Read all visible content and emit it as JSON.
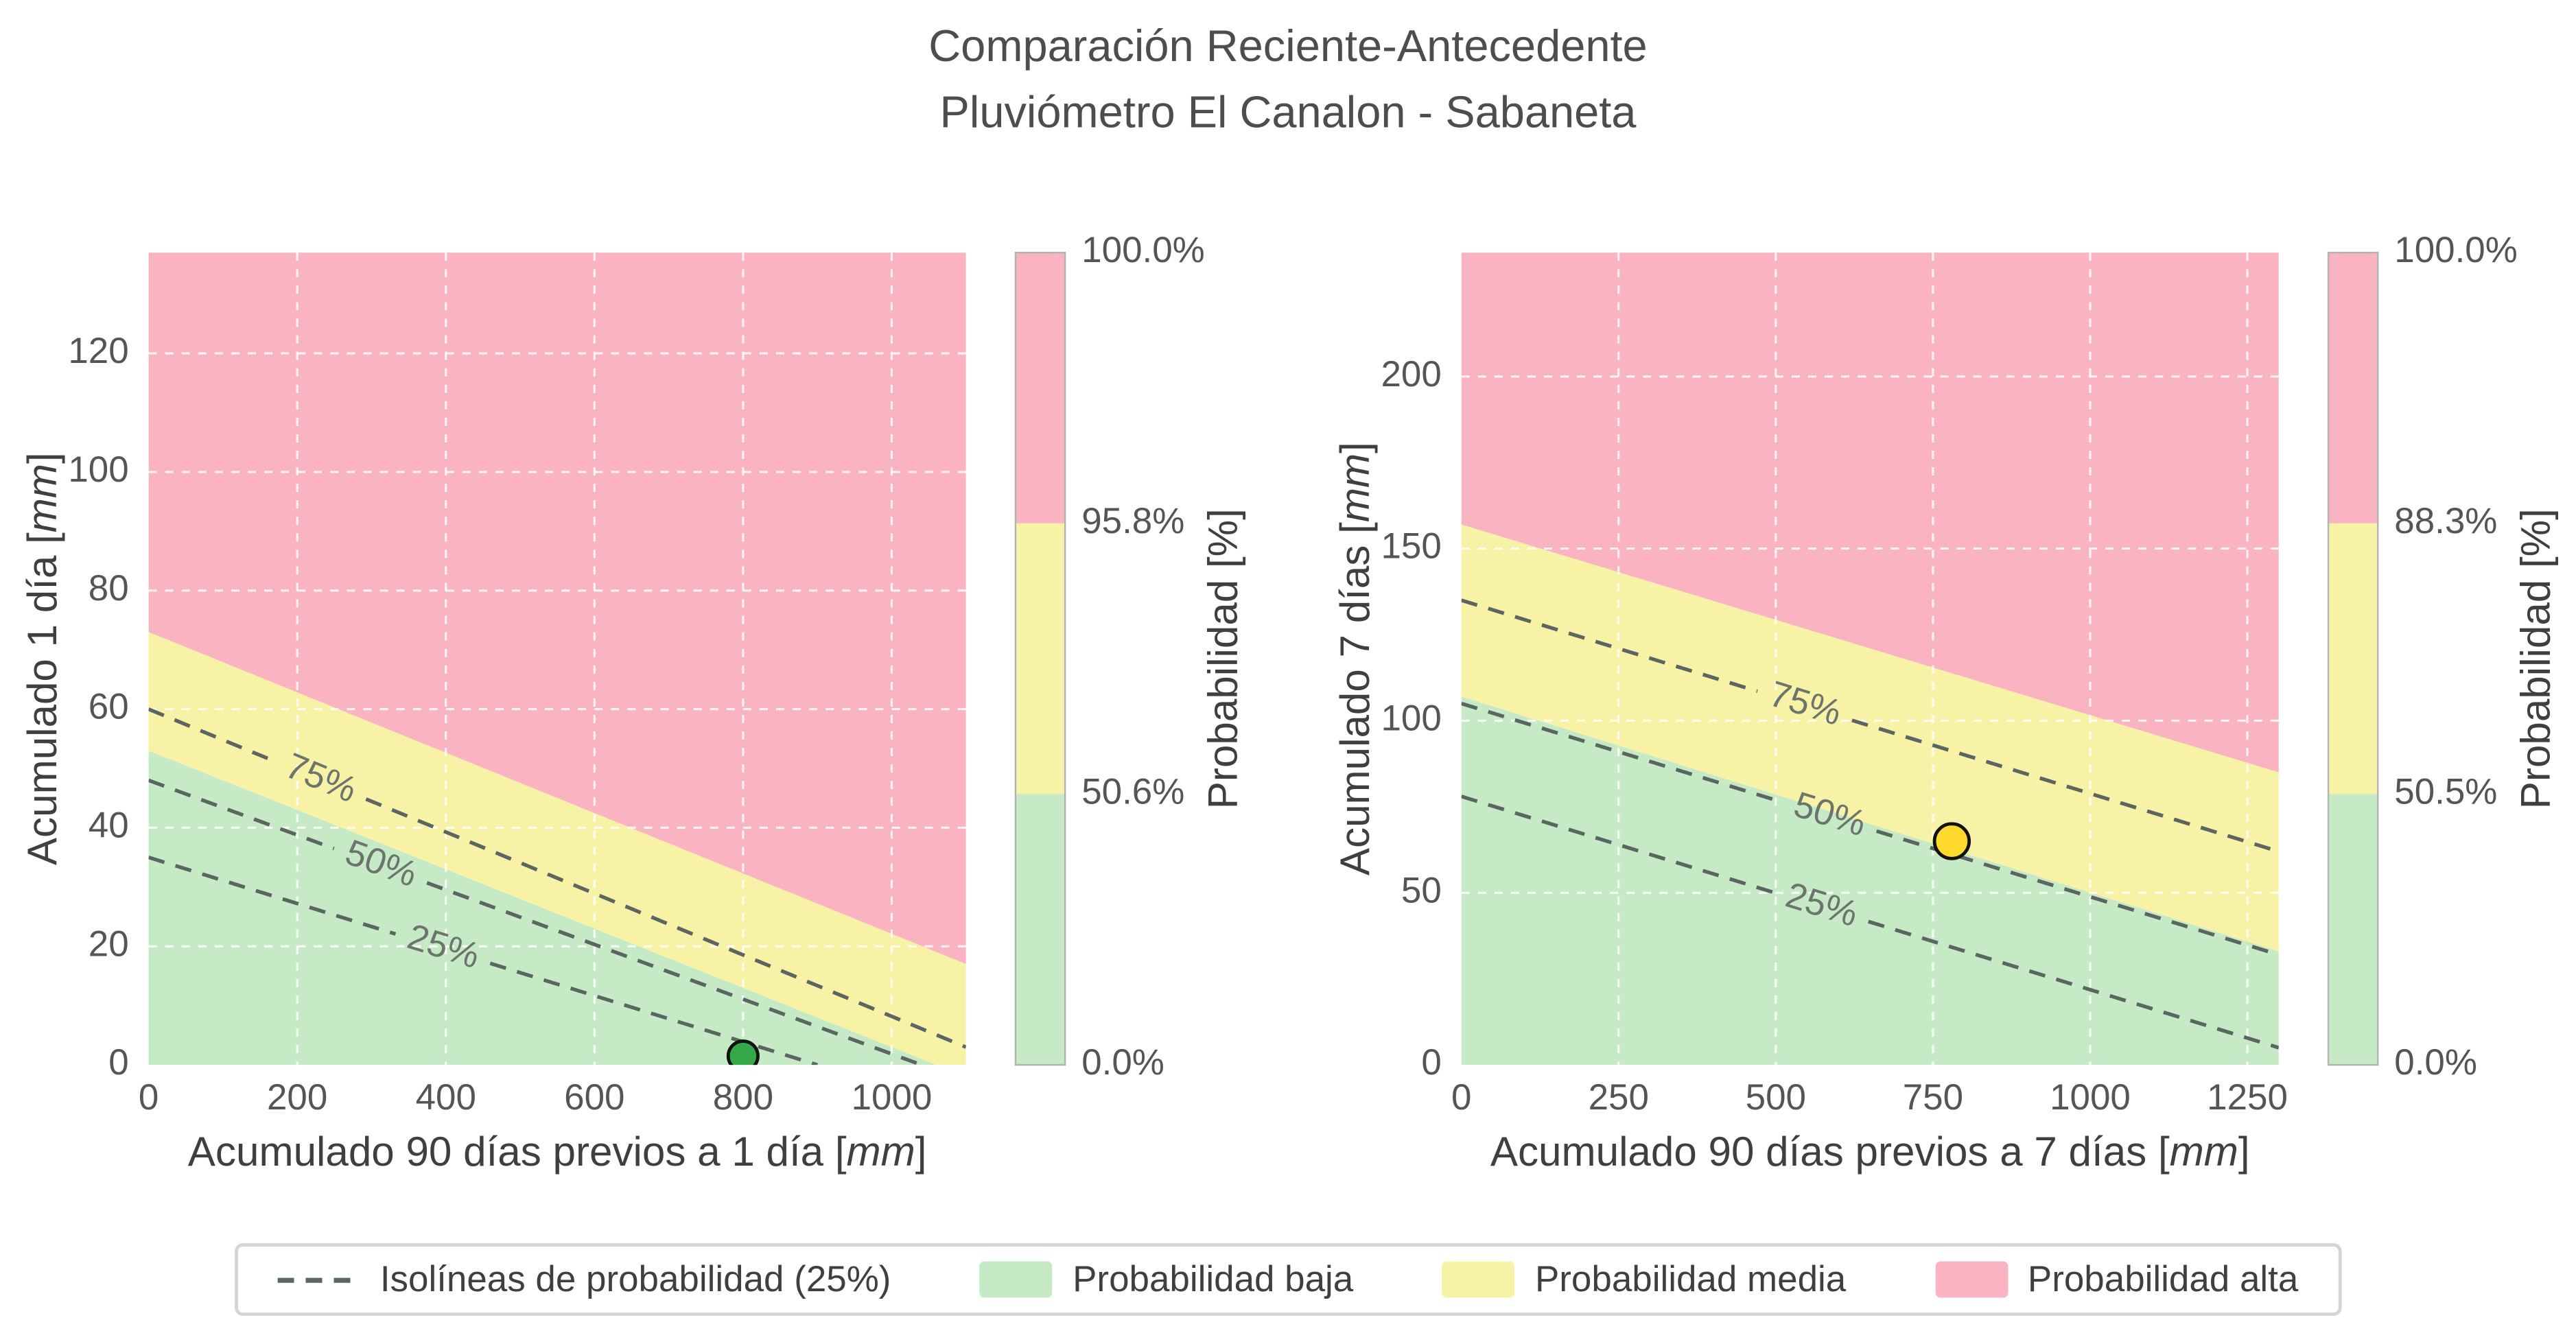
{
  "title": {
    "line1": "Comparación Reciente-Antecedente",
    "line2": "Pluviómetro El Canalon - Sabaneta"
  },
  "colors": {
    "low": "#c6e9c6",
    "mid": "#f7f2a6",
    "high": "#f9b3c1",
    "isoline": "#5b6562",
    "point_left": "#35a94a",
    "point_right": "#ffd92b",
    "text": "#4d4d4d"
  },
  "legend": {
    "items": [
      {
        "type": "dash",
        "color_key": "isoline",
        "label": "Isolíneas de probabilidad (25%)"
      },
      {
        "type": "patch",
        "color_key": "low",
        "label": "Probabilidad baja"
      },
      {
        "type": "patch",
        "color_key": "mid",
        "label": "Probabilidad media"
      },
      {
        "type": "patch",
        "color_key": "high",
        "label": "Probabilidad alta"
      }
    ]
  },
  "chart_data": [
    {
      "type": "area",
      "name": "acumulado-1-dia",
      "xlabel": "Acumulado 90 días previos a 1 día [mm]",
      "ylabel": "Acumulado 1 día [mm]",
      "xlim": [
        0,
        1100
      ],
      "ylim": [
        0,
        137
      ],
      "xticks": [
        0,
        200,
        400,
        600,
        800,
        1000
      ],
      "yticks": [
        0,
        20,
        40,
        60,
        80,
        100,
        120
      ],
      "grid": true,
      "boundaries": {
        "low_mid": {
          "x0": 0,
          "y0": 53,
          "x1": 1060,
          "y1": 0
        },
        "mid_high": {
          "x0": 0,
          "y0": 73,
          "x1": 1100,
          "y1": 17
        }
      },
      "isolines": [
        {
          "label": "75%",
          "x0": 0,
          "y0": 60,
          "x1": 1100,
          "y1": 3,
          "label_t": 0.21
        },
        {
          "label": "50%",
          "x0": 0,
          "y0": 48,
          "x1": 1040,
          "y1": 0,
          "label_t": 0.3
        },
        {
          "label": "25%",
          "x0": 0,
          "y0": 35,
          "x1": 900,
          "y1": 0,
          "label_t": 0.44
        }
      ],
      "point": {
        "x": 800,
        "y": 1.5,
        "color": "#35a94a"
      },
      "colorbar": {
        "title": "Probabilidad [%]",
        "tick_labels": [
          "0.0%",
          "50.6%",
          "95.8%",
          "100.0%"
        ],
        "segment_colors_bottom_to_top": [
          "low",
          "mid",
          "high"
        ]
      }
    },
    {
      "type": "area",
      "name": "acumulado-7-dias",
      "xlabel": "Acumulado 90 días previos a 7 días [mm]",
      "ylabel": "Acumulado 7 días [mm]",
      "xlim": [
        0,
        1300
      ],
      "ylim": [
        0,
        236
      ],
      "xticks": [
        0,
        250,
        500,
        750,
        1000,
        1250
      ],
      "yticks": [
        0,
        50,
        100,
        150,
        200
      ],
      "grid": true,
      "boundaries": {
        "low_mid": {
          "x0": 0,
          "y0": 107,
          "x1": 1300,
          "y1": 33
        },
        "mid_high": {
          "x0": 0,
          "y0": 157,
          "x1": 1300,
          "y1": 85
        }
      },
      "isolines": [
        {
          "label": "75%",
          "x0": 0,
          "y0": 135,
          "x1": 1300,
          "y1": 62,
          "label_t": 0.42
        },
        {
          "label": "50%",
          "x0": 0,
          "y0": 105,
          "x1": 1300,
          "y1": 32,
          "label_t": 0.45
        },
        {
          "label": "25%",
          "x0": 0,
          "y0": 78,
          "x1": 1300,
          "y1": 5,
          "label_t": 0.44
        }
      ],
      "point": {
        "x": 780,
        "y": 65,
        "color": "#ffd92b"
      },
      "colorbar": {
        "title": "Probabilidad [%]",
        "tick_labels": [
          "0.0%",
          "50.5%",
          "88.3%",
          "100.0%"
        ],
        "segment_colors_bottom_to_top": [
          "low",
          "mid",
          "high"
        ]
      }
    }
  ]
}
